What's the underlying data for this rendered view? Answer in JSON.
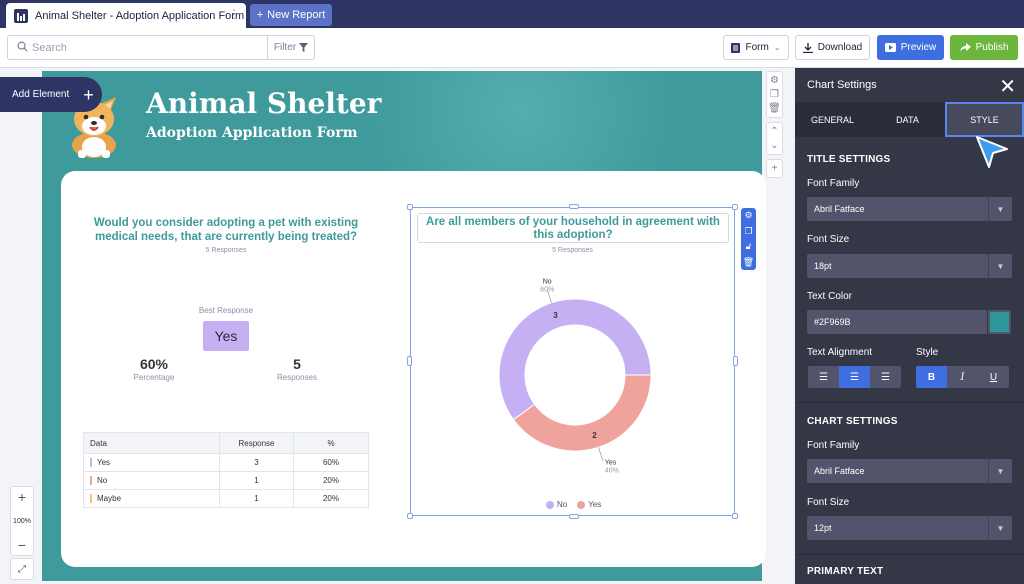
{
  "tabs": {
    "doc_title": "Animal Shelter - Adoption Application Form",
    "new_report": "New Report"
  },
  "toolbar": {
    "search_placeholder": "Search",
    "filter_label": "Filter",
    "form_label": "Form",
    "download_label": "Download",
    "preview_label": "Preview",
    "publish_label": "Publish"
  },
  "canvas": {
    "add_element": "Add Element",
    "form_title": "Animal Shelter",
    "form_subtitle": "Adoption Application Form",
    "zoom": "100%"
  },
  "chart1": {
    "question": "Would you consider adopting a pet with existing medical needs, that are currently being treated?",
    "responses_text": "5 Responses",
    "best_label": "Best Response",
    "best_value": "Yes",
    "percent_value": "60%",
    "percent_label": "Percentage",
    "responses_value": "5",
    "responses_label": "Responses",
    "table": {
      "headers": [
        "Data",
        "Response",
        "%"
      ],
      "rows": [
        {
          "label": "Yes",
          "response": "3",
          "pct": "60%",
          "color": "#c5b0f4"
        },
        {
          "label": "No",
          "response": "1",
          "pct": "20%",
          "color": "#f0a39c"
        },
        {
          "label": "Maybe",
          "response": "1",
          "pct": "20%",
          "color": "#f3c46a"
        }
      ]
    }
  },
  "chart2": {
    "question": "Are all members of your household in agreement with this adoption?",
    "responses_text": "5 Responses"
  },
  "chart_data": {
    "type": "pie",
    "title": "Are all members of your household in agreement with this adoption?",
    "categories": [
      "No",
      "Yes"
    ],
    "values": [
      3,
      2
    ],
    "percent_labels": [
      "60%",
      "40%"
    ],
    "colors": [
      "#c5b0f4",
      "#f0a39c"
    ],
    "legend": "bottom"
  },
  "panel": {
    "title": "Chart Settings",
    "tabs": [
      "GENERAL",
      "DATA",
      "STYLE"
    ],
    "title_settings": "TITLE SETTINGS",
    "font_family_label": "Font Family",
    "font_family_value": "Abril Fatface",
    "font_size_label": "Font Size",
    "font_size_value": "18pt",
    "text_color_label": "Text Color",
    "text_color_value": "#2F969B",
    "text_alignment_label": "Text Alignment",
    "style_label": "Style",
    "chart_settings": "CHART SETTINGS",
    "chart_font_family_label": "Font Family",
    "chart_font_family_value": "Abril Fatface",
    "chart_font_size_label": "Font Size",
    "chart_font_size_value": "12pt",
    "primary_text": "PRIMARY TEXT"
  }
}
